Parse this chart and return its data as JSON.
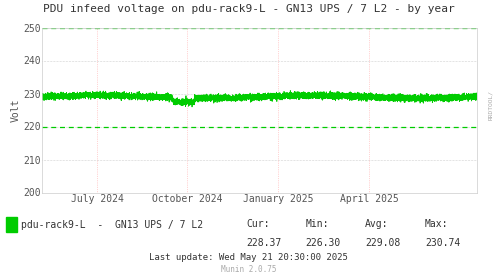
{
  "title": "PDU infeed voltage on pdu-rack9-L - GN13 UPS / 7 L2 - by year",
  "ylabel": "Volt",
  "ylim": [
    200,
    250
  ],
  "yticks": [
    200,
    210,
    220,
    230,
    240,
    250
  ],
  "xtick_labels": [
    "July 2024",
    "October 2024",
    "January 2025",
    "April 2025"
  ],
  "xtick_positions": [
    0.126,
    0.334,
    0.542,
    0.752
  ],
  "line_color": "#00cc00",
  "line_mean": 229.0,
  "dashed_line_value": 220.0,
  "dashed_line_color": "#00cc00",
  "upper_dashed_value": 250.0,
  "upper_dashed_color": "#00cc00",
  "bg_color": "#ffffff",
  "plot_bg_color": "#ffffff",
  "grid_h_color": "#aaaaaa",
  "grid_v_color": "#ffaaaa",
  "legend_label": "pdu-rack9-L  -  GN13 UPS / 7 L2",
  "legend_color": "#00cc00",
  "cur": 228.37,
  "min": 226.3,
  "avg": 229.08,
  "max": 230.74,
  "last_update": "Last update: Wed May 21 20:30:00 2025",
  "munin_version": "Munin 2.0.75",
  "rrdtool_label": "RRDTOOL/",
  "title_fontsize": 8,
  "axis_fontsize": 7,
  "legend_fontsize": 7,
  "stats_fontsize": 7
}
